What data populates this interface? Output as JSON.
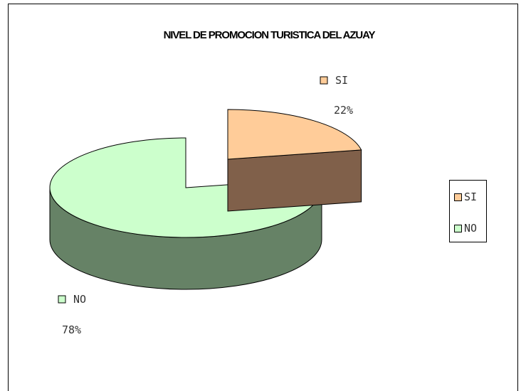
{
  "chart_data": {
    "type": "pie",
    "title": "NIVEL DE PROMOCION TURISTICA DEL AZUAY",
    "categories": [
      "SI",
      "NO"
    ],
    "values": [
      22,
      78
    ],
    "labels": [
      "22%",
      "78%"
    ],
    "colors": {
      "SI": "#ffcc99",
      "SI_side": "#80604a",
      "NO": "#ccffcc",
      "NO_side": "#668266"
    },
    "three_d": true,
    "legend_position": "right"
  },
  "legend": {
    "items": [
      {
        "label": "SI"
      },
      {
        "label": "NO"
      }
    ]
  }
}
